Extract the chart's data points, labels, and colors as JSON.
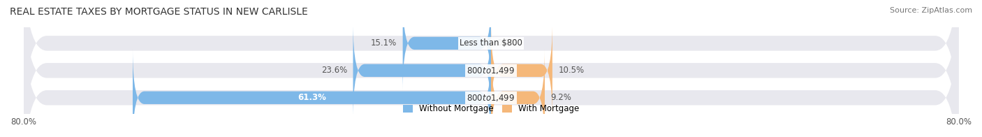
{
  "title": "REAL ESTATE TAXES BY MORTGAGE STATUS IN NEW CARLISLE",
  "source": "Source: ZipAtlas.com",
  "rows": [
    {
      "label": "Less than $800",
      "without_mortgage": 15.1,
      "with_mortgage": 0.0
    },
    {
      "label": "$800 to $1,499",
      "without_mortgage": 23.6,
      "with_mortgage": 10.5
    },
    {
      "label": "$800 to $1,499",
      "without_mortgage": 61.3,
      "with_mortgage": 9.2
    }
  ],
  "x_min": -80.0,
  "x_max": 80.0,
  "color_without": "#7eb8e8",
  "color_with": "#f5b87a",
  "bar_height": 0.55,
  "bg_bar": "#e8e8ee",
  "bg_fig": "#ffffff",
  "title_fontsize": 10,
  "label_fontsize": 8.5,
  "tick_fontsize": 8.5,
  "source_fontsize": 8
}
